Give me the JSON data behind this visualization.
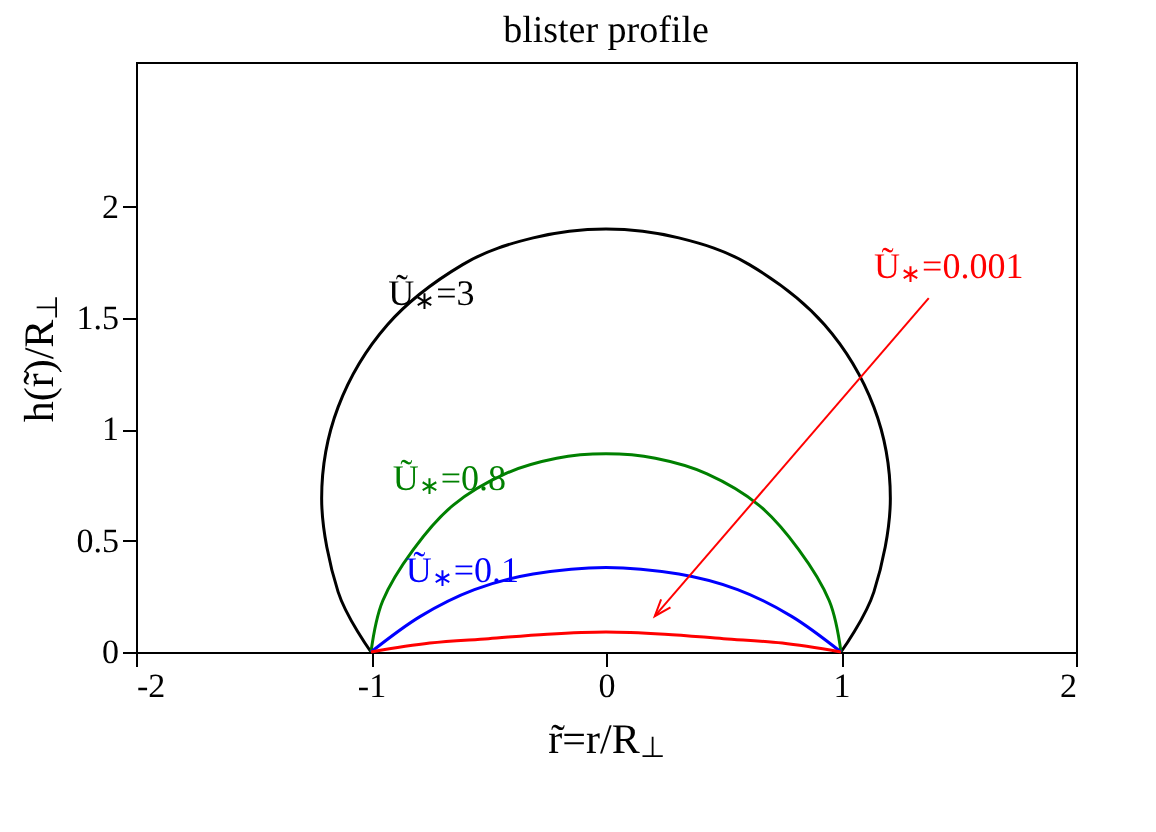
{
  "chart_data": {
    "type": "line",
    "title": "blister profile",
    "xlabel": "r̃=r/R$_{⊥}$",
    "ylabel": "h(r̃)/R$_{⊥}$",
    "xlim": [
      -2,
      2
    ],
    "xticks": [
      -2,
      -1,
      0,
      1,
      2
    ],
    "ylim": [
      0,
      2.65
    ],
    "yticks": [
      0,
      0.5,
      1,
      1.5,
      2
    ],
    "grid": false,
    "marker": "none",
    "line_style": "solid",
    "series": [
      {
        "name": "Ũ$_{∗}$=3",
        "color": "#000000",
        "x": [
          -1,
          -1.14,
          -1.21,
          -1.14,
          -0.93,
          -0.61,
          -0.31,
          0,
          0.31,
          0.61,
          0.93,
          1.14,
          1.21,
          1.14,
          1
        ],
        "values": [
          0,
          0.27,
          0.69,
          1.1,
          1.47,
          1.74,
          1.86,
          1.9,
          1.86,
          1.74,
          1.47,
          1.1,
          0.69,
          0.27,
          0
        ]
      },
      {
        "name": "Ũ$_{∗}$=0.8",
        "color": "#008000",
        "x": [
          -1,
          -0.95,
          -0.82,
          -0.65,
          -0.43,
          -0.21,
          0,
          0.21,
          0.43,
          0.65,
          0.82,
          0.95,
          1
        ],
        "values": [
          0,
          0.23,
          0.46,
          0.66,
          0.8,
          0.87,
          0.89,
          0.87,
          0.8,
          0.66,
          0.46,
          0.23,
          0
        ]
      },
      {
        "name": "Ũ$_{∗}$=0.1",
        "color": "#0000ff",
        "x": [
          -1,
          -0.79,
          -0.56,
          -0.31,
          0,
          0.31,
          0.56,
          0.79,
          1
        ],
        "values": [
          0,
          0.16,
          0.28,
          0.35,
          0.38,
          0.35,
          0.28,
          0.16,
          0
        ]
      },
      {
        "name": "Ũ$_{∗}$=0.001",
        "color": "#ff0000",
        "x": [
          -1,
          -0.75,
          -0.5,
          -0.25,
          0,
          0.25,
          0.5,
          0.75,
          1
        ],
        "values": [
          0,
          0.04,
          0.06,
          0.08,
          0.09,
          0.08,
          0.06,
          0.04,
          0
        ]
      }
    ]
  }
}
